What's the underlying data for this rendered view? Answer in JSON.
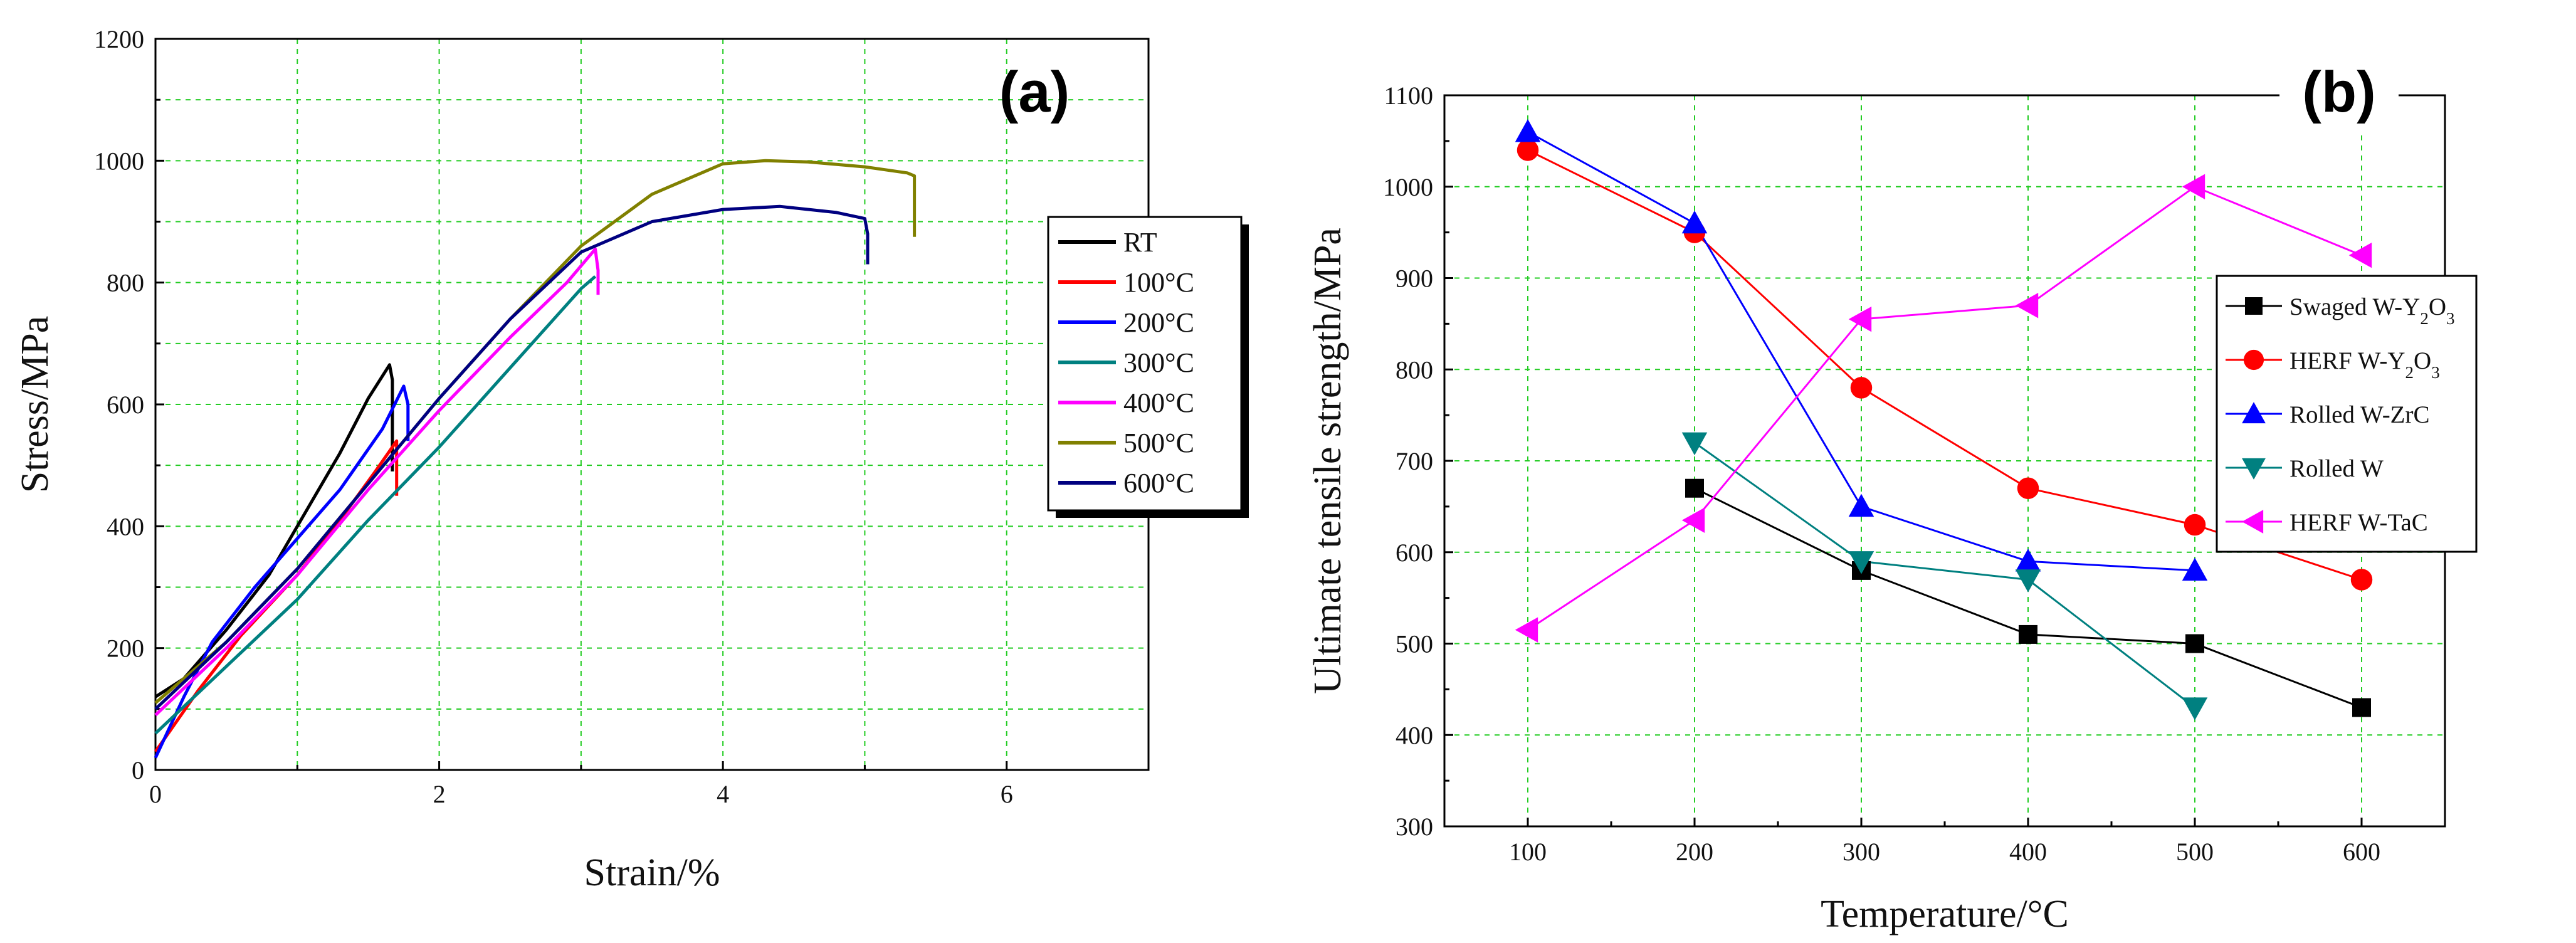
{
  "chart_data": [
    {
      "panel": "(a)",
      "type": "line",
      "xlabel": "Strain/%",
      "ylabel": "Stress/MPa",
      "xlim": [
        0,
        7
      ],
      "ylim": [
        0,
        1200
      ],
      "xticks": [
        0,
        2,
        4,
        6
      ],
      "yticks": [
        0,
        200,
        400,
        600,
        800,
        1000,
        1200
      ],
      "grid": true,
      "legend_position": "right",
      "series": [
        {
          "name": "RT",
          "color": "#000000",
          "x": [
            0,
            0.2,
            0.5,
            0.8,
            1.0,
            1.3,
            1.5,
            1.65,
            1.67,
            1.67
          ],
          "y": [
            120,
            150,
            230,
            320,
            400,
            520,
            610,
            665,
            640,
            490
          ]
        },
        {
          "name": "100°C",
          "color": "#ff0000",
          "x": [
            0,
            0.3,
            0.6,
            1.0,
            1.3,
            1.55,
            1.7,
            1.7
          ],
          "y": [
            30,
            130,
            220,
            320,
            410,
            490,
            540,
            450
          ]
        },
        {
          "name": "200°C",
          "color": "#0000ff",
          "x": [
            0,
            0.2,
            0.4,
            0.7,
            1.0,
            1.3,
            1.6,
            1.75,
            1.78,
            1.78
          ],
          "y": [
            20,
            120,
            210,
            300,
            380,
            460,
            560,
            630,
            600,
            540
          ]
        },
        {
          "name": "300°C",
          "color": "#008080",
          "x": [
            0,
            0.5,
            1.0,
            1.5,
            2.0,
            2.5,
            3.0,
            3.1
          ],
          "y": [
            60,
            170,
            280,
            410,
            530,
            660,
            790,
            810
          ]
        },
        {
          "name": "400°C",
          "color": "#ff00ff",
          "x": [
            0,
            0.5,
            1.0,
            1.5,
            2.0,
            2.5,
            2.9,
            3.1,
            3.12,
            3.12
          ],
          "y": [
            90,
            200,
            320,
            460,
            590,
            710,
            800,
            855,
            820,
            780
          ]
        },
        {
          "name": "500°C",
          "color": "#808000",
          "x": [
            0,
            0.5,
            1.0,
            1.5,
            2.0,
            2.5,
            3.0,
            3.5,
            4.0,
            4.3,
            4.6,
            5.0,
            5.3,
            5.35,
            5.35
          ],
          "y": [
            110,
            210,
            330,
            470,
            610,
            740,
            860,
            945,
            995,
            1000,
            998,
            990,
            980,
            975,
            875
          ]
        },
        {
          "name": "600°C",
          "color": "#000080",
          "x": [
            0,
            0.5,
            1.0,
            1.5,
            2.0,
            2.5,
            3.0,
            3.5,
            4.0,
            4.4,
            4.8,
            5.0,
            5.02,
            5.02
          ],
          "y": [
            100,
            210,
            330,
            470,
            610,
            740,
            850,
            900,
            920,
            925,
            915,
            905,
            880,
            830
          ]
        }
      ]
    },
    {
      "panel": "(b)",
      "type": "line",
      "xlabel": "Temperature/°C",
      "ylabel": "Ultimate tensile strength/MPa",
      "xlim": [
        50,
        650
      ],
      "ylim": [
        300,
        1100
      ],
      "xticks": [
        100,
        200,
        300,
        400,
        500,
        600
      ],
      "yticks": [
        300,
        400,
        500,
        600,
        700,
        800,
        900,
        1000,
        1100
      ],
      "grid": true,
      "legend_position": "right",
      "series": [
        {
          "name": "Swaged W-Y2O3",
          "color": "#000000",
          "marker": "square",
          "x": [
            200,
            300,
            400,
            500,
            600
          ],
          "y": [
            670,
            580,
            510,
            500,
            430
          ]
        },
        {
          "name": "HERF W-Y2O3",
          "color": "#ff0000",
          "marker": "circle",
          "x": [
            100,
            200,
            300,
            400,
            500,
            600
          ],
          "y": [
            1040,
            950,
            780,
            670,
            630,
            570
          ]
        },
        {
          "name": "Rolled W-ZrC",
          "color": "#0000ff",
          "marker": "triangle-up",
          "x": [
            100,
            200,
            300,
            400,
            500
          ],
          "y": [
            1060,
            960,
            650,
            590,
            580
          ]
        },
        {
          "name": "Rolled W",
          "color": "#008080",
          "marker": "triangle-down",
          "x": [
            200,
            300,
            400,
            500
          ],
          "y": [
            720,
            590,
            570,
            430
          ]
        },
        {
          "name": "HERF W-TaC",
          "color": "#ff00ff",
          "marker": "triangle-left",
          "x": [
            100,
            200,
            300,
            400,
            500,
            600
          ],
          "y": [
            515,
            635,
            855,
            870,
            1000,
            925
          ]
        }
      ],
      "legend_labels": [
        {
          "prefix": "Swaged W-Y",
          "sub1": "2",
          "mid": "O",
          "sub2": "3"
        },
        {
          "prefix": "HERF W-Y",
          "sub1": "2",
          "mid": "O",
          "sub2": "3"
        },
        {
          "prefix": "Rolled W-ZrC"
        },
        {
          "prefix": "Rolled W"
        },
        {
          "prefix": "HERF W-TaC"
        }
      ]
    }
  ]
}
